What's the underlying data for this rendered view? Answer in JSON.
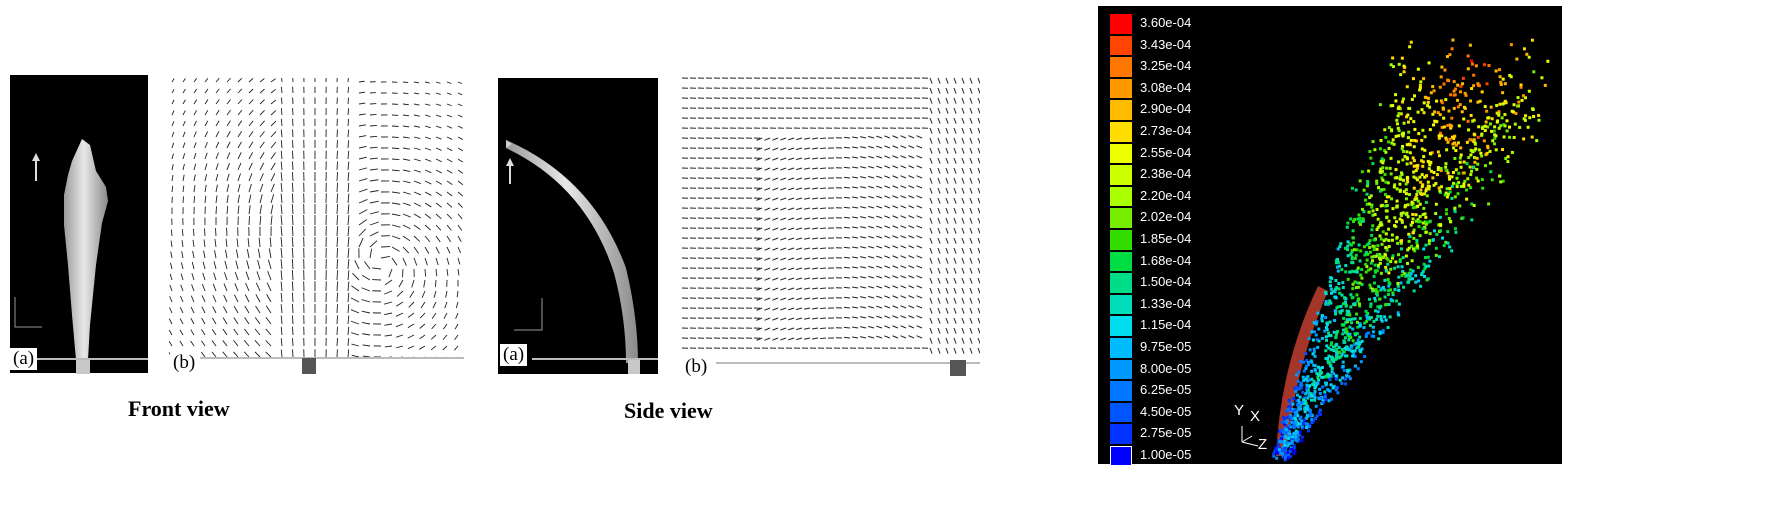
{
  "front": {
    "label_a": "(a)",
    "label_b": "(b)",
    "caption": "Front view"
  },
  "side": {
    "label_a": "(a)",
    "label_b": "(b)",
    "caption": "Side view"
  },
  "colorbar": {
    "values": [
      "3.60e-04",
      "3.43e-04",
      "3.25e-04",
      "3.08e-04",
      "2.90e-04",
      "2.73e-04",
      "2.55e-04",
      "2.38e-04",
      "2.20e-04",
      "2.02e-04",
      "1.85e-04",
      "1.68e-04",
      "1.50e-04",
      "1.33e-04",
      "1.15e-04",
      "9.75e-05",
      "8.00e-05",
      "6.25e-05",
      "4.50e-05",
      "2.75e-05",
      "1.00e-05"
    ],
    "colors": [
      "#ff0000",
      "#ff4400",
      "#ff7700",
      "#ff9900",
      "#ffbb00",
      "#ffdd00",
      "#eeff00",
      "#ccff00",
      "#aaff00",
      "#77ee00",
      "#33dd00",
      "#00dd44",
      "#00dd88",
      "#00ddbb",
      "#00ddee",
      "#00bbff",
      "#0099ff",
      "#0077ff",
      "#0055ff",
      "#0033ff",
      "#0000ff"
    ]
  },
  "axes": {
    "y": "Y",
    "x": "X",
    "z": "Z"
  }
}
